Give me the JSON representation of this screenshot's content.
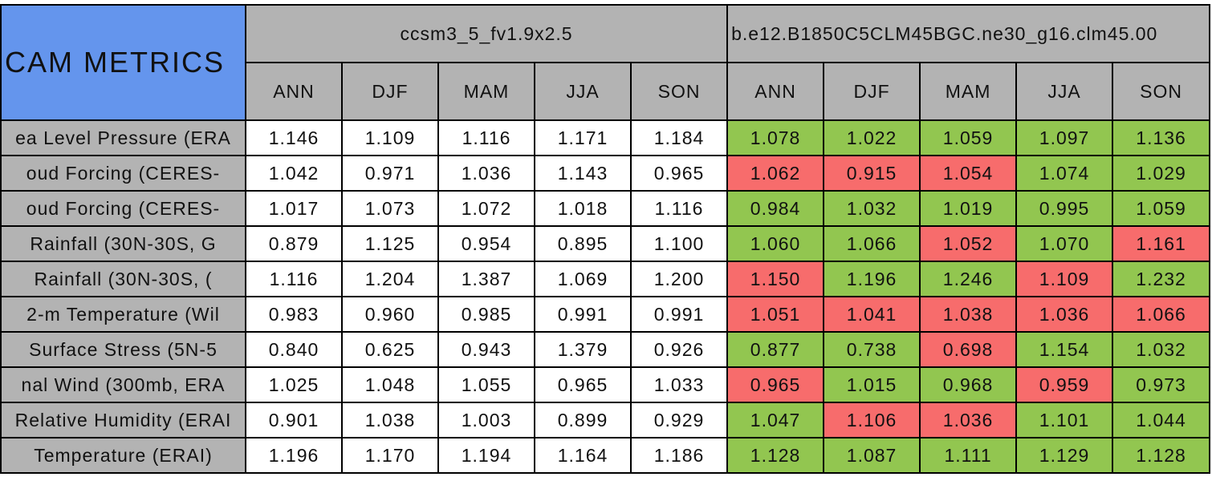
{
  "table": {
    "title": "CAM METRICS",
    "models": [
      "ccsm3_5_fv1.9x2.5",
      "b.e12.B1850C5CLM45BGC.ne30_g16.clm45.00"
    ],
    "seasons": [
      [
        "ANN",
        "DJF",
        "MAM",
        "JJA",
        "SON"
      ],
      [
        "ANN",
        "DJF",
        "MAM",
        "JJA",
        "SON"
      ]
    ],
    "rows": [
      {
        "label": "ea Level Pressure (ERA",
        "values": [
          "1.146",
          "1.109",
          "1.116",
          "1.171",
          "1.184",
          "1.078",
          "1.022",
          "1.059",
          "1.097",
          "1.136"
        ],
        "colors": [
          "#ffffff",
          "#ffffff",
          "#ffffff",
          "#ffffff",
          "#ffffff",
          "#92c650",
          "#92c650",
          "#92c650",
          "#92c650",
          "#92c650"
        ]
      },
      {
        "label": "oud Forcing (CERES-",
        "values": [
          "1.042",
          "0.971",
          "1.036",
          "1.143",
          "0.965",
          "1.062",
          "0.915",
          "1.054",
          "1.074",
          "1.029"
        ],
        "colors": [
          "#ffffff",
          "#ffffff",
          "#ffffff",
          "#ffffff",
          "#ffffff",
          "#f76c6c",
          "#f76c6c",
          "#f76c6c",
          "#92c650",
          "#92c650"
        ]
      },
      {
        "label": "oud Forcing (CERES-",
        "values": [
          "1.017",
          "1.073",
          "1.072",
          "1.018",
          "1.116",
          "0.984",
          "1.032",
          "1.019",
          "0.995",
          "1.059"
        ],
        "colors": [
          "#ffffff",
          "#ffffff",
          "#ffffff",
          "#ffffff",
          "#ffffff",
          "#92c650",
          "#92c650",
          "#92c650",
          "#92c650",
          "#92c650"
        ]
      },
      {
        "label": "Rainfall (30N-30S, G",
        "values": [
          "0.879",
          "1.125",
          "0.954",
          "0.895",
          "1.100",
          "1.060",
          "1.066",
          "1.052",
          "1.070",
          "1.161"
        ],
        "colors": [
          "#ffffff",
          "#ffffff",
          "#ffffff",
          "#ffffff",
          "#ffffff",
          "#92c650",
          "#92c650",
          "#f76c6c",
          "#92c650",
          "#f76c6c"
        ]
      },
      {
        "label": "Rainfall (30N-30S, (",
        "values": [
          "1.116",
          "1.204",
          "1.387",
          "1.069",
          "1.200",
          "1.150",
          "1.196",
          "1.246",
          "1.109",
          "1.232"
        ],
        "colors": [
          "#ffffff",
          "#ffffff",
          "#ffffff",
          "#ffffff",
          "#ffffff",
          "#f76c6c",
          "#92c650",
          "#92c650",
          "#f76c6c",
          "#92c650"
        ]
      },
      {
        "label": "2-m Temperature (Wil",
        "values": [
          "0.983",
          "0.960",
          "0.985",
          "0.991",
          "0.991",
          "1.051",
          "1.041",
          "1.038",
          "1.036",
          "1.066"
        ],
        "colors": [
          "#ffffff",
          "#ffffff",
          "#ffffff",
          "#ffffff",
          "#ffffff",
          "#f76c6c",
          "#f76c6c",
          "#f76c6c",
          "#f76c6c",
          "#f76c6c"
        ]
      },
      {
        "label": "Surface Stress (5N-5",
        "values": [
          "0.840",
          "0.625",
          "0.943",
          "1.379",
          "0.926",
          "0.877",
          "0.738",
          "0.698",
          "1.154",
          "1.032"
        ],
        "colors": [
          "#ffffff",
          "#ffffff",
          "#ffffff",
          "#ffffff",
          "#ffffff",
          "#92c650",
          "#92c650",
          "#f76c6c",
          "#92c650",
          "#92c650"
        ]
      },
      {
        "label": "nal Wind (300mb, ERA",
        "values": [
          "1.025",
          "1.048",
          "1.055",
          "0.965",
          "1.033",
          "0.965",
          "1.015",
          "0.968",
          "0.959",
          "0.973"
        ],
        "colors": [
          "#ffffff",
          "#ffffff",
          "#ffffff",
          "#ffffff",
          "#ffffff",
          "#f76c6c",
          "#92c650",
          "#92c650",
          "#f76c6c",
          "#92c650"
        ]
      },
      {
        "label": "Relative Humidity (ERAI",
        "values": [
          "0.901",
          "1.038",
          "1.003",
          "0.899",
          "0.929",
          "1.047",
          "1.106",
          "1.036",
          "1.101",
          "1.044"
        ],
        "colors": [
          "#ffffff",
          "#ffffff",
          "#ffffff",
          "#ffffff",
          "#ffffff",
          "#92c650",
          "#f76c6c",
          "#f76c6c",
          "#92c650",
          "#92c650"
        ]
      },
      {
        "label": "Temperature (ERAI)",
        "values": [
          "1.196",
          "1.170",
          "1.194",
          "1.164",
          "1.186",
          "1.128",
          "1.087",
          "1.111",
          "1.129",
          "1.128"
        ],
        "colors": [
          "#ffffff",
          "#ffffff",
          "#ffffff",
          "#ffffff",
          "#ffffff",
          "#92c650",
          "#92c650",
          "#92c650",
          "#92c650",
          "#92c650"
        ]
      }
    ]
  }
}
